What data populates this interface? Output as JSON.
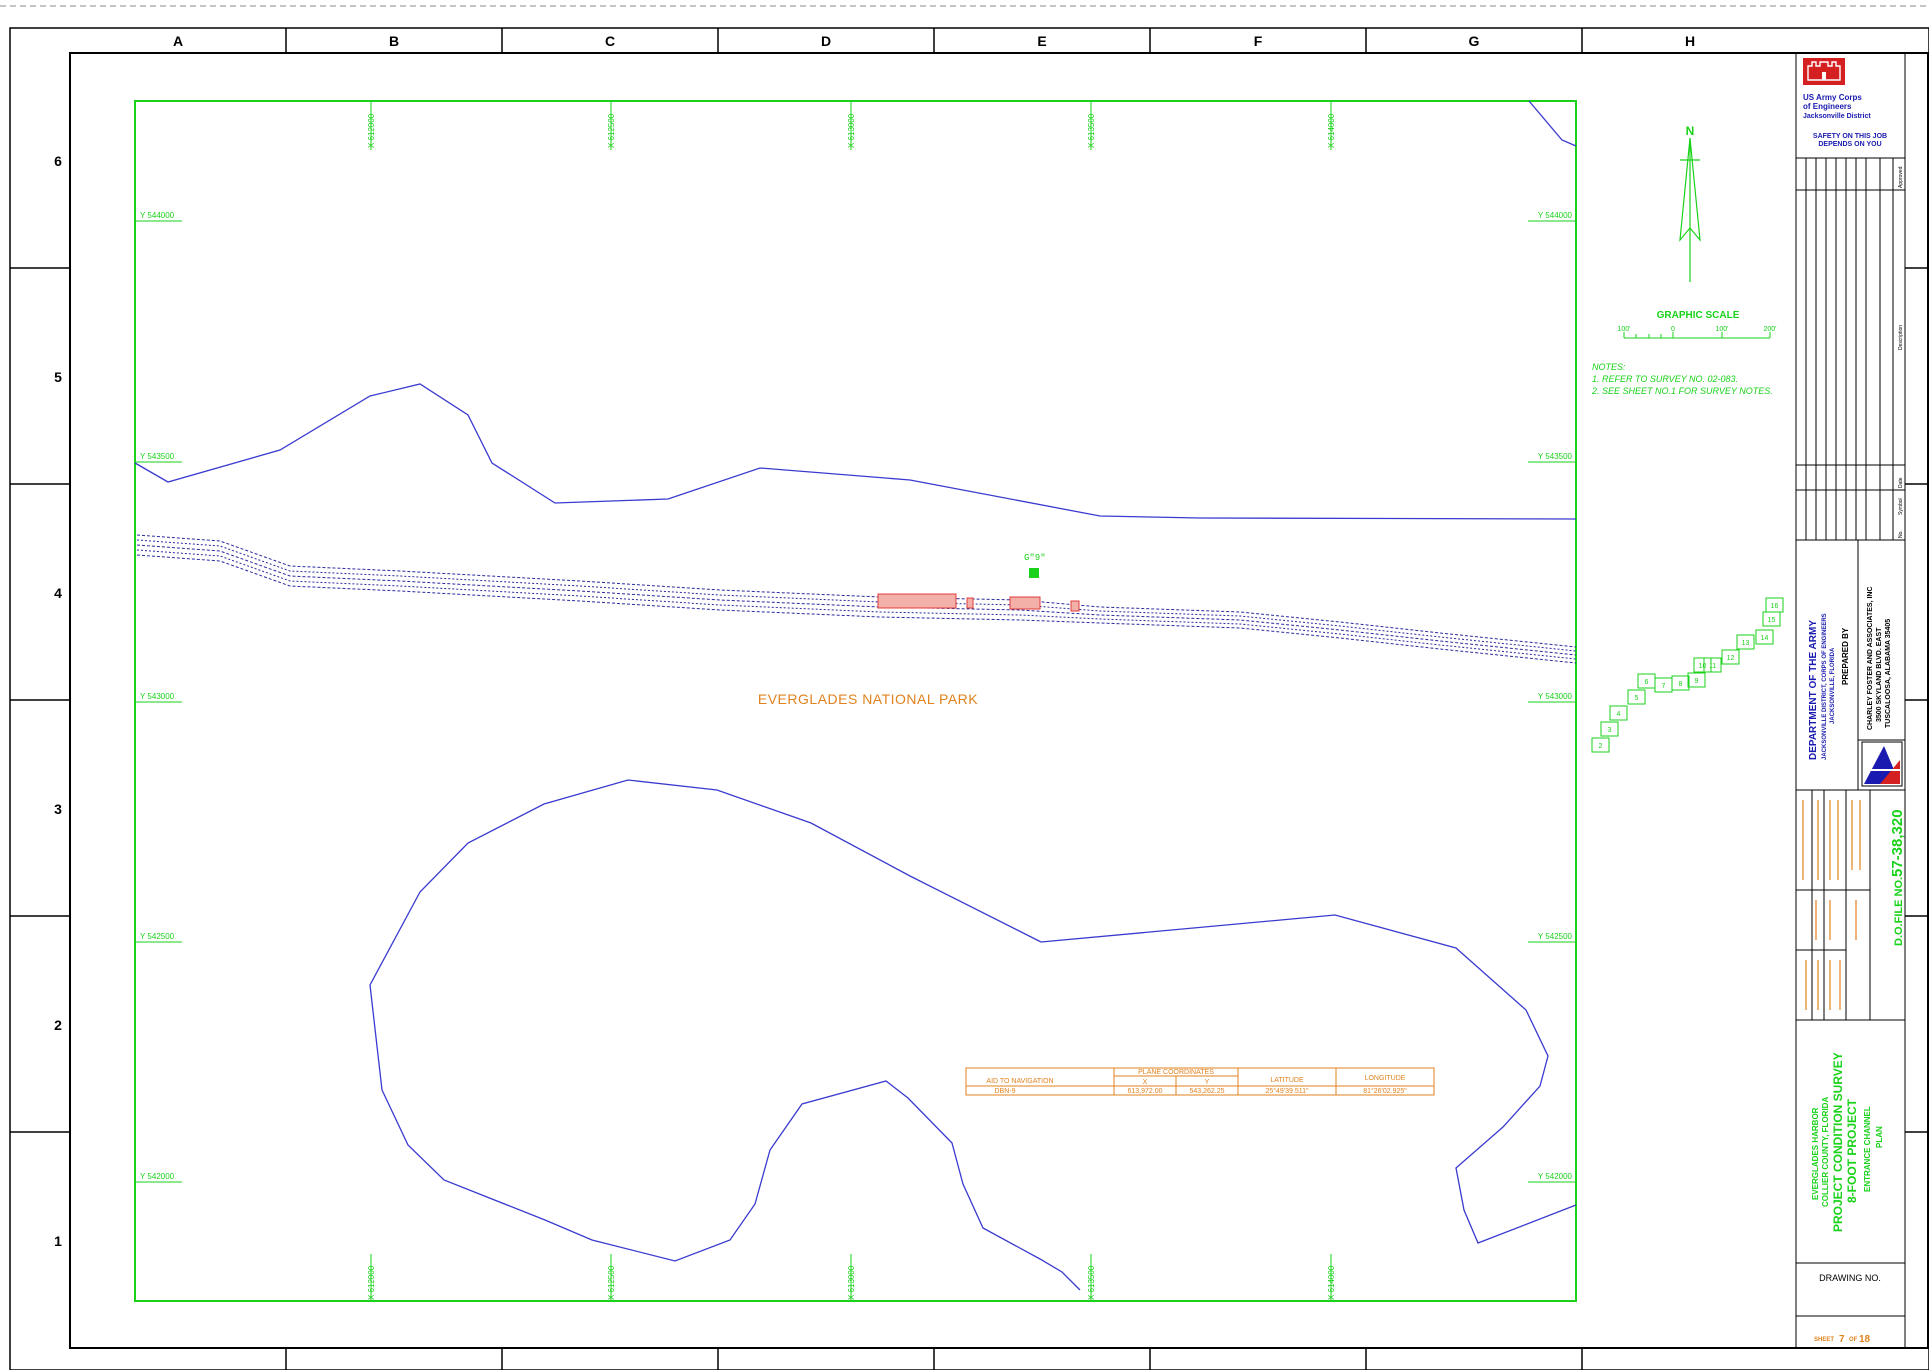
{
  "grid": {
    "columns": [
      "A",
      "B",
      "C",
      "D",
      "E",
      "F",
      "G",
      "H"
    ],
    "rows": [
      "6",
      "5",
      "4",
      "3",
      "2",
      "1"
    ]
  },
  "map": {
    "park_label": "EVERGLADES NATIONAL PARK",
    "marker_label": "G\"9\"",
    "coord_left": [
      "Y 544000",
      "Y 543500",
      "Y 543000",
      "Y 542500",
      "Y 542000"
    ],
    "coord_right": [
      "Y 544000",
      "Y 543500",
      "Y 543000",
      "Y 542500",
      "Y 542000"
    ],
    "coord_top": [
      "X 612000",
      "X 612500",
      "X 613000",
      "X 613500",
      "X 614000"
    ],
    "coord_bottom": [
      "X 612000",
      "X 612500",
      "X 613000",
      "X 613500",
      "X 614000"
    ]
  },
  "nav_table": {
    "header_aid": "AID TO NAVIGATION",
    "header_plane": "PLANE COORDINATES",
    "header_x": "X",
    "header_y": "Y",
    "header_lat": "LATITUDE",
    "header_lon": "LONGITUDE",
    "row": {
      "aid": "DBN-9",
      "x": "613,972.00",
      "y": "543,262.25",
      "lat": "25°49'39.511\"",
      "lon": "81°26'02.925\""
    }
  },
  "north_arrow": {
    "label": "N"
  },
  "graphic_scale": {
    "title": "GRAPHIC SCALE",
    "ticks": [
      "100'",
      "0",
      "100'",
      "200'"
    ]
  },
  "notes": {
    "heading": "NOTES:",
    "items": [
      "1. REFER TO SURVEY NO. 02-083.",
      "2. SEE SHEET NO.1 FOR SURVEY NOTES."
    ]
  },
  "key_map": {
    "cells": [
      "2",
      "3",
      "4",
      "5",
      "6",
      "7",
      "8",
      "9",
      "10",
      "11",
      "12",
      "13",
      "14",
      "15",
      "16"
    ]
  },
  "title_block": {
    "agency_line1": "US Army Corps",
    "agency_line2": "of Engineers",
    "agency_line3": "Jacksonville District",
    "safety_line1": "SAFETY ON THIS JOB",
    "safety_line2": "DEPENDS ON YOU",
    "rev_approved": "Approved",
    "rev_description": "Description",
    "rev_date": "Date",
    "rev_symbol": "Symbol",
    "rev_no": "No.",
    "dept_line1": "DEPARTMENT OF THE ARMY",
    "dept_line2": "JACKSONVILLE DISTRICT, CORPS OF ENGINEERS",
    "dept_line3": "JACKSONVILLE, FLORIDA",
    "prepared_by": "PREPARED BY",
    "firm_line1": "CHARLEY FOSTER AND ASSOCIATES, INC",
    "firm_line2": "3500 SKYLAND BLVD. EAST",
    "firm_line3": "TUSCALOOSA, ALABAMA  35405",
    "file_no_label": "D.O.FILE NO.",
    "file_no": "57-38,320",
    "project_line1": "EVERGLADES HARBOR",
    "project_line2": "COLLIER COUNTY, FLORIDA",
    "project_line3": "PROJECT CONDITION SURVEY",
    "project_line4": "8-FOOT PROJECT",
    "project_line5": "ENTRANCE CHANNEL",
    "project_line6": "PLAN",
    "drawing_no_label": "DRAWING NO.",
    "sheet_label": "SHEET",
    "sheet_no": "7",
    "of_label": "OF",
    "sheet_total": "18"
  },
  "colors": {
    "frame": "#000000",
    "green": "#19d219",
    "shoreline": "#3a3ad0",
    "channel": "#2a2aa0",
    "orange": "#e0821e",
    "red": "#e03c3c",
    "usace_red": "#d42020"
  }
}
